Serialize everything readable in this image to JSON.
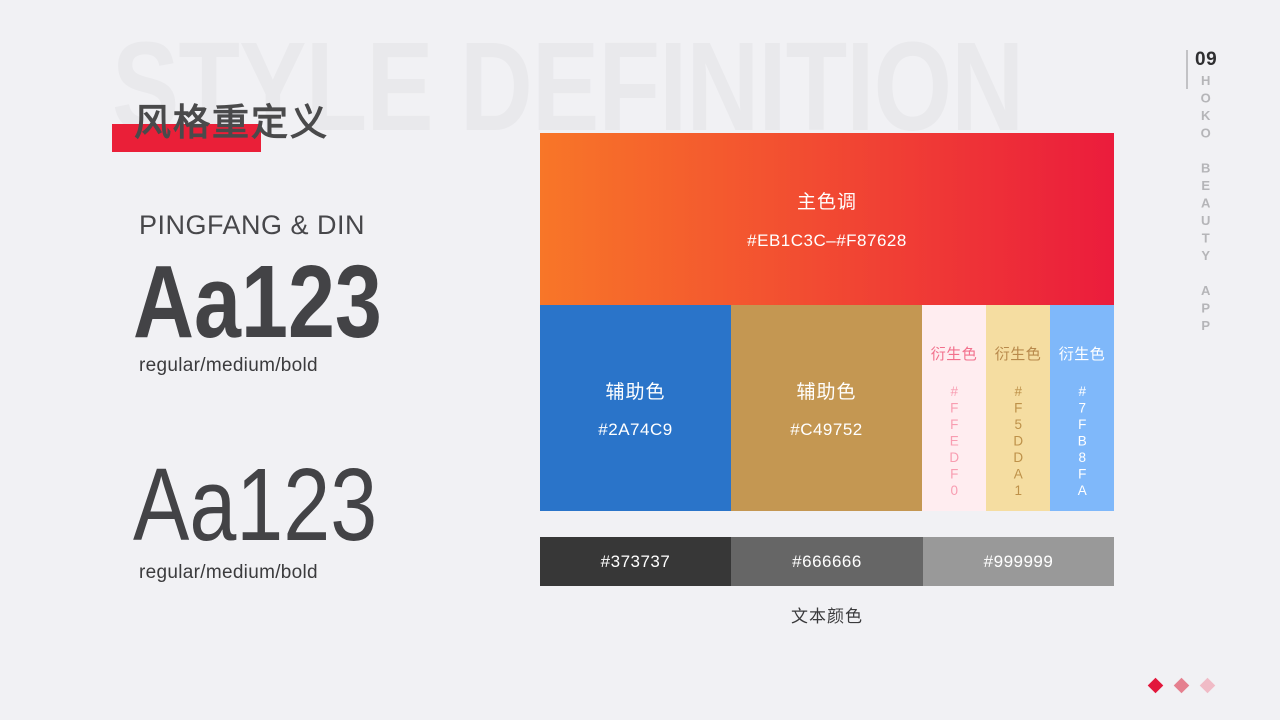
{
  "page": {
    "background": "#F1F1F4",
    "watermark": "STYLE DEFINITION",
    "title": "风格重定义",
    "accent_red": "#EA1F38"
  },
  "typography": {
    "font_name": "PINGFANG & DIN",
    "samples": [
      {
        "text": "Aa123",
        "weights": "regular/medium/bold"
      },
      {
        "text": "Aa123",
        "weights": "regular/medium/bold"
      }
    ]
  },
  "palette": {
    "primary": {
      "label": "主色调",
      "hex": "#EB1C3C–#F87628",
      "gradient_from": "#F87628",
      "gradient_to": "#EB1C3C"
    },
    "secondary": [
      {
        "label": "辅助色",
        "hex": "#2A74C9",
        "bg": "#2A74C9"
      },
      {
        "label": "辅助色",
        "hex": "#C49752",
        "bg": "#C49752"
      }
    ],
    "derived": [
      {
        "label": "衍生色",
        "hex": "#FFEDF0",
        "bg": "#FFEDF0",
        "label_color": "#F2708C",
        "hex_color": "#F89DB1"
      },
      {
        "label": "衍生色",
        "hex": "#F5DDA1",
        "bg": "#F5DDA1",
        "label_color": "#B8894B",
        "hex_color": "#BE9149"
      },
      {
        "label": "衍生色",
        "hex": "#7FB8FA",
        "bg": "#7FB8FA",
        "label_color": "#FFFFFF",
        "hex_color": "#FFFFFF"
      }
    ],
    "text_colors": {
      "caption": "文本颜色",
      "swatches": [
        {
          "hex": "#373737",
          "bg": "#373737"
        },
        {
          "hex": "#666666",
          "bg": "#666666"
        },
        {
          "hex": "#999999",
          "bg": "#999999"
        }
      ]
    }
  },
  "sidebar": {
    "page_number": "09",
    "vertical_text": "HOKO BEAUTY APP"
  },
  "footer": {
    "diamond_colors": [
      "#E2173B",
      "#E5808F",
      "#F0BBC6"
    ]
  }
}
